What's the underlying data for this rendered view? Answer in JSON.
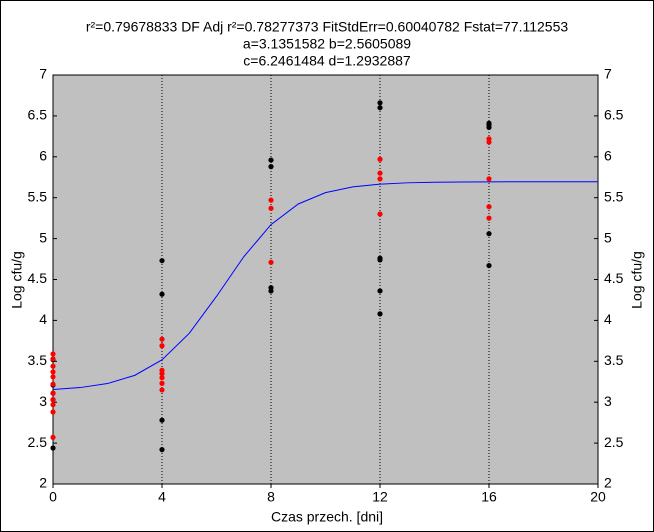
{
  "chart_data": {
    "type": "scatter",
    "title_lines": [
      "r²=0.79678833  DF Adj r²=0.78277373  FitStdErr=0.60040782  Fstat=77.112553",
      "a=3.1351582 b=2.5605089",
      "c=6.2461484 d=1.2932887"
    ],
    "x_label": "Czas przech. [dni]",
    "y_label": "Log cfu/g",
    "xlim": [
      0,
      20
    ],
    "xticks": [
      0,
      4,
      8,
      12,
      16,
      20
    ],
    "ylim": [
      2,
      7
    ],
    "yticks": [
      2,
      2.5,
      3,
      3.5,
      4,
      4.5,
      5,
      5.5,
      6,
      6.5,
      7
    ],
    "grid": true,
    "background": "#c0c0c0",
    "series": [
      {
        "type": "line",
        "color": "#0000ff",
        "x": [
          0,
          1,
          2,
          3,
          4,
          5,
          6,
          7,
          8,
          9,
          10,
          11,
          12,
          13,
          14,
          15,
          16,
          17,
          18,
          19,
          20
        ],
        "values": [
          3.155,
          3.179,
          3.228,
          3.328,
          3.518,
          3.842,
          4.294,
          4.778,
          5.171,
          5.423,
          5.562,
          5.632,
          5.666,
          5.682,
          5.689,
          5.692,
          5.694,
          5.695,
          5.695,
          5.695,
          5.695
        ]
      },
      {
        "type": "scatter",
        "color": "#000000",
        "x": [
          0,
          0,
          0,
          0,
          0,
          4,
          4,
          4,
          4,
          8,
          8,
          8,
          8,
          12,
          12,
          12,
          12,
          12,
          12,
          16,
          16,
          16,
          16,
          16
        ],
        "values": [
          3.52,
          3.21,
          3.11,
          3.03,
          2.44,
          4.73,
          4.32,
          2.78,
          2.42,
          5.96,
          5.88,
          4.4,
          4.36,
          6.66,
          6.6,
          4.76,
          4.74,
          4.36,
          4.08,
          6.41,
          6.39,
          6.36,
          5.06,
          4.67
        ]
      },
      {
        "type": "scatter",
        "color": "#ff0000",
        "x": [
          0,
          0,
          0,
          0,
          0,
          0,
          0,
          0,
          0,
          0,
          0,
          4,
          4,
          4,
          4,
          4,
          4,
          4,
          8,
          8,
          8,
          12,
          12,
          12,
          12,
          16,
          16,
          16,
          16,
          16
        ],
        "values": [
          3.59,
          3.53,
          3.44,
          3.37,
          3.31,
          3.22,
          3.11,
          3.03,
          2.97,
          2.88,
          2.57,
          3.77,
          3.69,
          3.39,
          3.35,
          3.3,
          3.23,
          3.15,
          5.47,
          5.37,
          4.71,
          5.97,
          5.8,
          5.73,
          5.3,
          6.22,
          6.18,
          5.73,
          5.39,
          5.25
        ]
      }
    ]
  }
}
